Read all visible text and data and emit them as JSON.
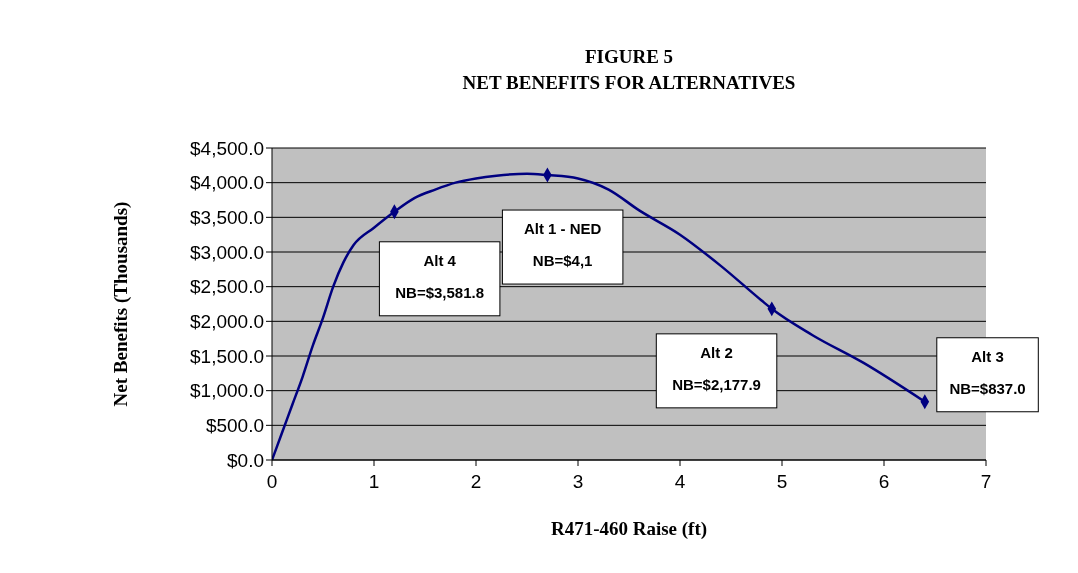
{
  "chart_data": {
    "type": "line",
    "title": "FIGURE 5\nNET BENEFITS FOR ALTERNATIVES",
    "xlabel": "R471-460 Raise (ft)",
    "ylabel": "Net Benefits (Thousands)",
    "series": [
      {
        "color": "#000080",
        "marker": "none",
        "x": [
          0,
          0.1,
          0.2,
          0.3,
          0.4,
          0.5,
          0.6,
          0.7,
          0.8,
          1.0,
          1.2,
          1.4,
          1.6,
          1.8,
          2.0,
          2.2,
          2.5,
          2.7,
          3.0,
          3.3,
          3.6,
          4.0,
          4.4,
          4.8,
          4.9,
          5.3,
          5.8,
          6.4
        ],
        "values": [
          0,
          400,
          800,
          1200,
          1650,
          2050,
          2500,
          2850,
          3100,
          3350,
          3580,
          3780,
          3900,
          4000,
          4060,
          4100,
          4130,
          4110,
          4060,
          3900,
          3600,
          3250,
          2800,
          2300,
          2180,
          1800,
          1400,
          840
        ]
      },
      {
        "type": "scatter",
        "color": "#000080",
        "marker": "diamond",
        "x": [
          1.2,
          2.7,
          4.9,
          6.4
        ],
        "values": [
          3580,
          4110,
          2180,
          840
        ]
      }
    ],
    "annotations": [
      {
        "text": "Alt 4\nNB=$3,581.8",
        "x": 1.2,
        "y": 3580
      },
      {
        "text": "Alt 1 - NED\nNB=$4,1",
        "x": 2.7,
        "y": 4110
      },
      {
        "text": "Alt 2\nNB=$2,177.9",
        "x": 4.9,
        "y": 2180
      },
      {
        "text": "Alt 3\nNB=$837.0",
        "x": 6.4,
        "y": 840
      }
    ],
    "xlim": [
      0,
      7
    ],
    "xticks": [
      0,
      1,
      2,
      3,
      4,
      5,
      6,
      7
    ],
    "ylim": [
      0,
      4500
    ],
    "yticks": [
      {
        "value": 0,
        "label": "$0.0"
      },
      {
        "value": 500,
        "label": "$500.0"
      },
      {
        "value": 1000,
        "label": "$1,000.0"
      },
      {
        "value": 1500,
        "label": "$1,500.0"
      },
      {
        "value": 2000,
        "label": "$2,000.0"
      },
      {
        "value": 2500,
        "label": "$2,500.0"
      },
      {
        "value": 3000,
        "label": "$3,000.0"
      },
      {
        "value": 3500,
        "label": "$3,500.0"
      },
      {
        "value": 4000,
        "label": "$4,000.0"
      },
      {
        "value": 4500,
        "label": "$4,500.0"
      }
    ],
    "grid": "y",
    "legend": false
  }
}
